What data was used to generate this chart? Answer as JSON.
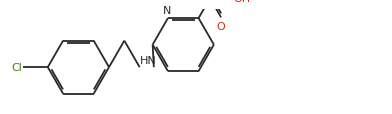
{
  "background_color": "#ffffff",
  "bond_color": "#2a2a2a",
  "lw": 1.3,
  "dbo": 0.055,
  "dbs": 0.09,
  "fs": 8.0,
  "Cl_color": "#4a7a1a",
  "N_color": "#2a2a2a",
  "O_color": "#cc3300",
  "fig_w": 3.92,
  "fig_h": 1.15,
  "dpi": 100,
  "xlim": [
    0.0,
    10.5
  ],
  "ylim": [
    0.2,
    3.0
  ]
}
